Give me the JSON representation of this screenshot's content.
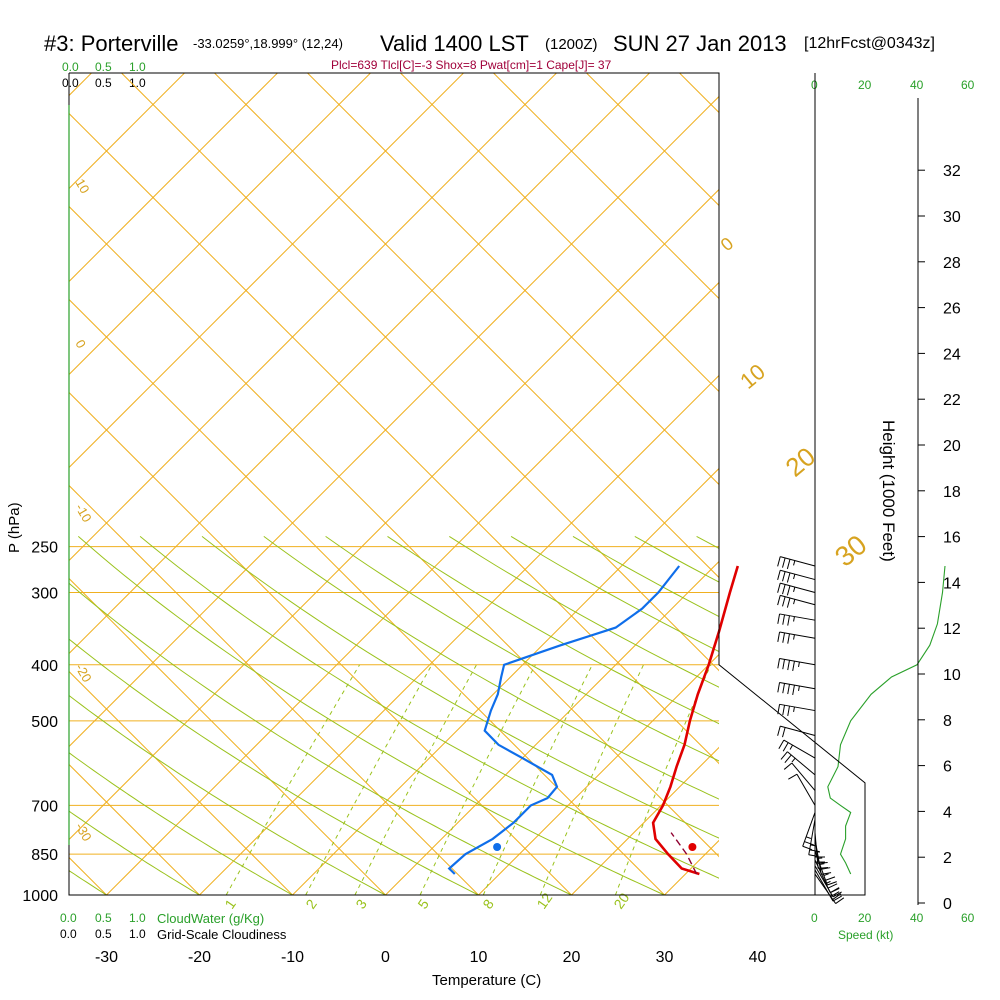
{
  "header": {
    "station": "#3: Porterville",
    "coords": "-33.0259°,18.999° (12,24)",
    "valid_label": "Valid 1400 LST",
    "utc": "(1200Z)",
    "date": "SUN 27 Jan 2013",
    "forecast": "[12hrFcst@0343z]",
    "params": "Plcl=639 Tlcl[C]=-3 Shox=8 Pwat[cm]=1 Cape[J]= 37"
  },
  "scales": {
    "cloudwater_ticks": [
      "0.0",
      "0.5",
      "1.0"
    ],
    "cloudiness_ticks": [
      "0.0",
      "0.5",
      "1.0"
    ],
    "cloudwater_label": "CloudWater (g/Kg)",
    "cloudiness_label": "Grid-Scale Cloudiness",
    "speed_ticks": [
      "0",
      "20",
      "40",
      "60"
    ],
    "speed_label": "Speed (kt)"
  },
  "chart_data": {
    "type": "skew-t",
    "xlabel": "Temperature (C)",
    "ylabel": "P (hPa)",
    "y2label": "Height (1000 Feet)",
    "x_ticks": [
      -30,
      -20,
      -10,
      0,
      10,
      20,
      30,
      40
    ],
    "p_ticks": [
      250,
      300,
      400,
      500,
      700,
      850,
      1000
    ],
    "height_ticks": [
      0,
      2,
      4,
      6,
      8,
      10,
      12,
      14,
      16,
      18,
      20,
      22,
      24,
      26,
      28,
      30,
      32
    ],
    "dry_adiabat_labels": [
      "10",
      "0",
      "-10",
      "-20",
      "-30",
      "0",
      "10",
      "20",
      "30"
    ],
    "mixing_ratio_labels": [
      "1",
      "2",
      "3",
      "5",
      "8",
      "12",
      "20"
    ],
    "temperature": [
      {
        "p": 920,
        "t": 31.5
      },
      {
        "p": 900,
        "t": 29
      },
      {
        "p": 850,
        "t": 26
      },
      {
        "p": 800,
        "t": 23
      },
      {
        "p": 750,
        "t": 21
      },
      {
        "p": 700,
        "t": 20.2
      },
      {
        "p": 650,
        "t": 19
      },
      {
        "p": 600,
        "t": 17.5
      },
      {
        "p": 550,
        "t": 16
      },
      {
        "p": 500,
        "t": 14
      },
      {
        "p": 450,
        "t": 12
      },
      {
        "p": 400,
        "t": 10
      },
      {
        "p": 350,
        "t": 7.5
      },
      {
        "p": 300,
        "t": 4.5
      },
      {
        "p": 270,
        "t": 2.5
      }
    ],
    "dewpoint": [
      {
        "p": 920,
        "t": 5.2
      },
      {
        "p": 900,
        "t": 4
      },
      {
        "p": 850,
        "t": 4.2
      },
      {
        "p": 800,
        "t": 5.5
      },
      {
        "p": 750,
        "t": 6
      },
      {
        "p": 700,
        "t": 6
      },
      {
        "p": 680,
        "t": 7
      },
      {
        "p": 650,
        "t": 6.8
      },
      {
        "p": 620,
        "t": 5
      },
      {
        "p": 580,
        "t": 0
      },
      {
        "p": 550,
        "t": -4
      },
      {
        "p": 520,
        "t": -7
      },
      {
        "p": 480,
        "t": -8.5
      },
      {
        "p": 450,
        "t": -9.5
      },
      {
        "p": 420,
        "t": -11
      },
      {
        "p": 400,
        "t": -12
      },
      {
        "p": 370,
        "t": -8
      },
      {
        "p": 345,
        "t": -4
      },
      {
        "p": 320,
        "t": -3.2
      },
      {
        "p": 300,
        "t": -3.2
      },
      {
        "p": 270,
        "t": -3.8
      }
    ],
    "parcel": [
      {
        "p": 920,
        "t": 31.2
      },
      {
        "p": 850,
        "t": 28
      },
      {
        "p": 780,
        "t": 24
      }
    ],
    "surface_temperature": 33,
    "surface_dewpoint": 12,
    "wind_barbs": [
      {
        "p": 270,
        "dir": 285,
        "spd": 25
      },
      {
        "p": 285,
        "dir": 285,
        "spd": 25
      },
      {
        "p": 300,
        "dir": 285,
        "spd": 25
      },
      {
        "p": 315,
        "dir": 285,
        "spd": 25
      },
      {
        "p": 335,
        "dir": 280,
        "spd": 25
      },
      {
        "p": 360,
        "dir": 280,
        "spd": 25
      },
      {
        "p": 400,
        "dir": 280,
        "spd": 35
      },
      {
        "p": 440,
        "dir": 280,
        "spd": 35
      },
      {
        "p": 480,
        "dir": 280,
        "spd": 25
      },
      {
        "p": 530,
        "dir": 285,
        "spd": 20
      },
      {
        "p": 580,
        "dir": 300,
        "spd": 15
      },
      {
        "p": 620,
        "dir": 310,
        "spd": 15
      },
      {
        "p": 660,
        "dir": 320,
        "spd": 10
      },
      {
        "p": 700,
        "dir": 330,
        "spd": 10
      },
      {
        "p": 720,
        "dir": 200,
        "spd": 15
      },
      {
        "p": 740,
        "dir": 190,
        "spd": 15
      },
      {
        "p": 760,
        "dir": 180,
        "spd": 15
      },
      {
        "p": 780,
        "dir": 175,
        "spd": 15
      },
      {
        "p": 800,
        "dir": 170,
        "spd": 15
      },
      {
        "p": 840,
        "dir": 160,
        "spd": 15
      },
      {
        "p": 870,
        "dir": 155,
        "spd": 15
      },
      {
        "p": 890,
        "dir": 150,
        "spd": 20
      },
      {
        "p": 905,
        "dir": 150,
        "spd": 20
      },
      {
        "p": 920,
        "dir": 145,
        "spd": 20
      }
    ],
    "speed_profile": [
      {
        "p": 920,
        "spd": 14
      },
      {
        "p": 880,
        "spd": 12
      },
      {
        "p": 850,
        "spd": 10
      },
      {
        "p": 800,
        "spd": 12
      },
      {
        "p": 760,
        "spd": 12
      },
      {
        "p": 720,
        "spd": 14
      },
      {
        "p": 700,
        "spd": 10
      },
      {
        "p": 680,
        "spd": 6
      },
      {
        "p": 650,
        "spd": 5
      },
      {
        "p": 600,
        "spd": 9
      },
      {
        "p": 550,
        "spd": 10
      },
      {
        "p": 500,
        "spd": 14
      },
      {
        "p": 450,
        "spd": 22
      },
      {
        "p": 420,
        "spd": 30
      },
      {
        "p": 400,
        "spd": 40
      },
      {
        "p": 370,
        "spd": 45
      },
      {
        "p": 340,
        "spd": 48
      },
      {
        "p": 300,
        "spd": 50
      },
      {
        "p": 270,
        "spd": 51
      }
    ],
    "colors": {
      "isotherm": "#f0b020",
      "dry_adiabat": "#9ac21c",
      "mixing_ratio": "#9ac21c",
      "temperature": "#e00000",
      "dewpoint": "#0f6eea",
      "parcel": "#900030",
      "speed": "#2aa02a",
      "label": "#d7a320"
    }
  }
}
